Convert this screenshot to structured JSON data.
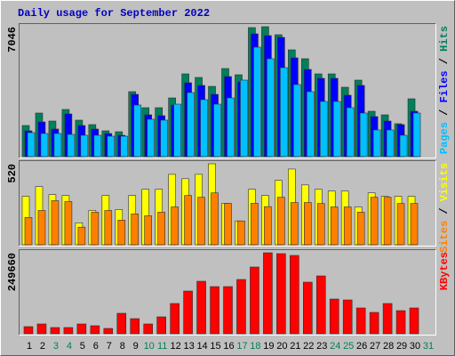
{
  "legend_separator": " / ",
  "chart_data": [
    {
      "type": "bar",
      "title": "Daily usage for September 2022",
      "ylim": [
        0,
        7046
      ],
      "yticks": [
        7046
      ],
      "series": [
        {
          "name": "Hits",
          "color": "#00805c",
          "values": [
            1689,
            2365,
            1930,
            2558,
            1979,
            1737,
            1400,
            1351,
            3523,
            2654,
            2654,
            3185,
            4488,
            4295,
            3812,
            4778,
            4440,
            6998,
            7046,
            6612,
            5791,
            5309,
            4488,
            4488,
            3764,
            4150,
            2461,
            2268,
            1786,
            3137,
            null
          ]
        },
        {
          "name": "Files",
          "color": "#0000ff",
          "values": [
            1400,
            1882,
            1496,
            2316,
            1689,
            1496,
            1255,
            1158,
            3378,
            2268,
            2220,
            2799,
            4006,
            3861,
            3378,
            4343,
            4054,
            6660,
            6563,
            6467,
            5357,
            4729,
            4247,
            4247,
            3330,
            3861,
            2172,
            1930,
            1737,
            2461,
            null
          ]
        },
        {
          "name": "Pages",
          "color": "#00c0ff",
          "values": [
            1303,
            1255,
            1255,
            1206,
            1158,
            1158,
            1110,
            1110,
            2799,
            2027,
            1979,
            2847,
            3475,
            3089,
            2847,
            3185,
            4150,
            5936,
            5309,
            4826,
            3909,
            3523,
            2992,
            2992,
            2654,
            2365,
            1448,
            1448,
            1158,
            2365,
            null
          ]
        }
      ]
    },
    {
      "type": "bar",
      "ylim": [
        0,
        520
      ],
      "yticks": [
        520
      ],
      "series": [
        {
          "name": "Visits",
          "color": "#ffff00",
          "values": [
            311,
            373,
            322,
            316,
            141,
            220,
            316,
            226,
            316,
            356,
            356,
            452,
            424,
            452,
            520,
            266,
            153,
            356,
            316,
            413,
            486,
            384,
            356,
            345,
            345,
            243,
            333,
            311,
            311,
            311,
            null
          ]
        },
        {
          "name": "Sites",
          "color": "#ff8000",
          "values": [
            175,
            220,
            283,
            277,
            113,
            209,
            220,
            158,
            198,
            186,
            209,
            243,
            316,
            305,
            333,
            266,
            153,
            266,
            245,
            305,
            271,
            271,
            265,
            243,
            243,
            209,
            305,
            305,
            265,
            265,
            null
          ]
        }
      ]
    },
    {
      "type": "bar",
      "ylim": [
        0,
        249660
      ],
      "yticks": [
        249660
      ],
      "categories": [
        "1",
        "2",
        "3",
        "4",
        "5",
        "6",
        "7",
        "8",
        "9",
        "10",
        "11",
        "12",
        "13",
        "14",
        "15",
        "16",
        "17",
        "18",
        "19",
        "20",
        "21",
        "22",
        "23",
        "24",
        "25",
        "26",
        "27",
        "28",
        "29",
        "30",
        "31"
      ],
      "category_colors": [
        "#000000",
        "#000000",
        "#00805c",
        "#00805c",
        "#000000",
        "#000000",
        "#000000",
        "#000000",
        "#000000",
        "#00805c",
        "#00805c",
        "#000000",
        "#000000",
        "#000000",
        "#000000",
        "#000000",
        "#00805c",
        "#00805c",
        "#000000",
        "#000000",
        "#000000",
        "#000000",
        "#000000",
        "#00805c",
        "#00805c",
        "#000000",
        "#000000",
        "#000000",
        "#000000",
        "#000000",
        "#00805c"
      ],
      "series": [
        {
          "name": "KBytes",
          "color": "#ff0000",
          "values": [
            21950,
            30170,
            19200,
            19200,
            30170,
            24690,
            16460,
            63090,
            46630,
            30170,
            52120,
            93260,
            131660,
            161840,
            145380,
            145380,
            167320,
            205720,
            249660,
            246900,
            241380,
            159100,
            178290,
            106980,
            104240,
            79550,
            65830,
            93260,
            71320,
            79550,
            null
          ]
        }
      ]
    }
  ]
}
